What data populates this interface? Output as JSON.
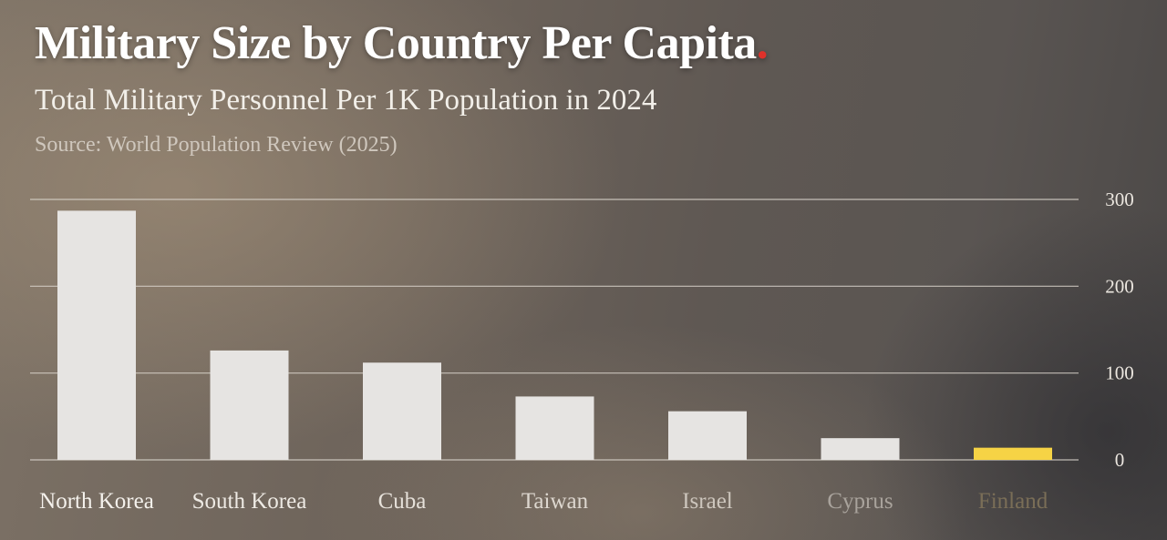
{
  "header": {
    "title": "Military Size by Country Per Capita",
    "subtitle": "Total Military Personnel Per 1K Population in 2024",
    "source": "Source: World Population Review (2025)"
  },
  "colors": {
    "bar": "#e6e4e2",
    "highlight": "#f6d345",
    "grid": "#d8d2ca",
    "title_dot": "#e0312a"
  },
  "chart_data": {
    "type": "bar",
    "categories": [
      "North Korea",
      "South Korea",
      "Cuba",
      "Taiwan",
      "Israel",
      "Cyprus",
      "Finland"
    ],
    "values": [
      287,
      126,
      112,
      73,
      56,
      25,
      14
    ],
    "highlight_category": "Finland",
    "ylim": [
      0,
      300
    ],
    "yticks": [
      0,
      100,
      200,
      300
    ],
    "grid": true,
    "y_axis_side": "right",
    "category_label_colors": [
      "#f4f1ec",
      "#eeeae4",
      "#e6e1da",
      "#ddd7cf",
      "#cdc6bd",
      "#a9a39c",
      "#7a6e57"
    ]
  }
}
